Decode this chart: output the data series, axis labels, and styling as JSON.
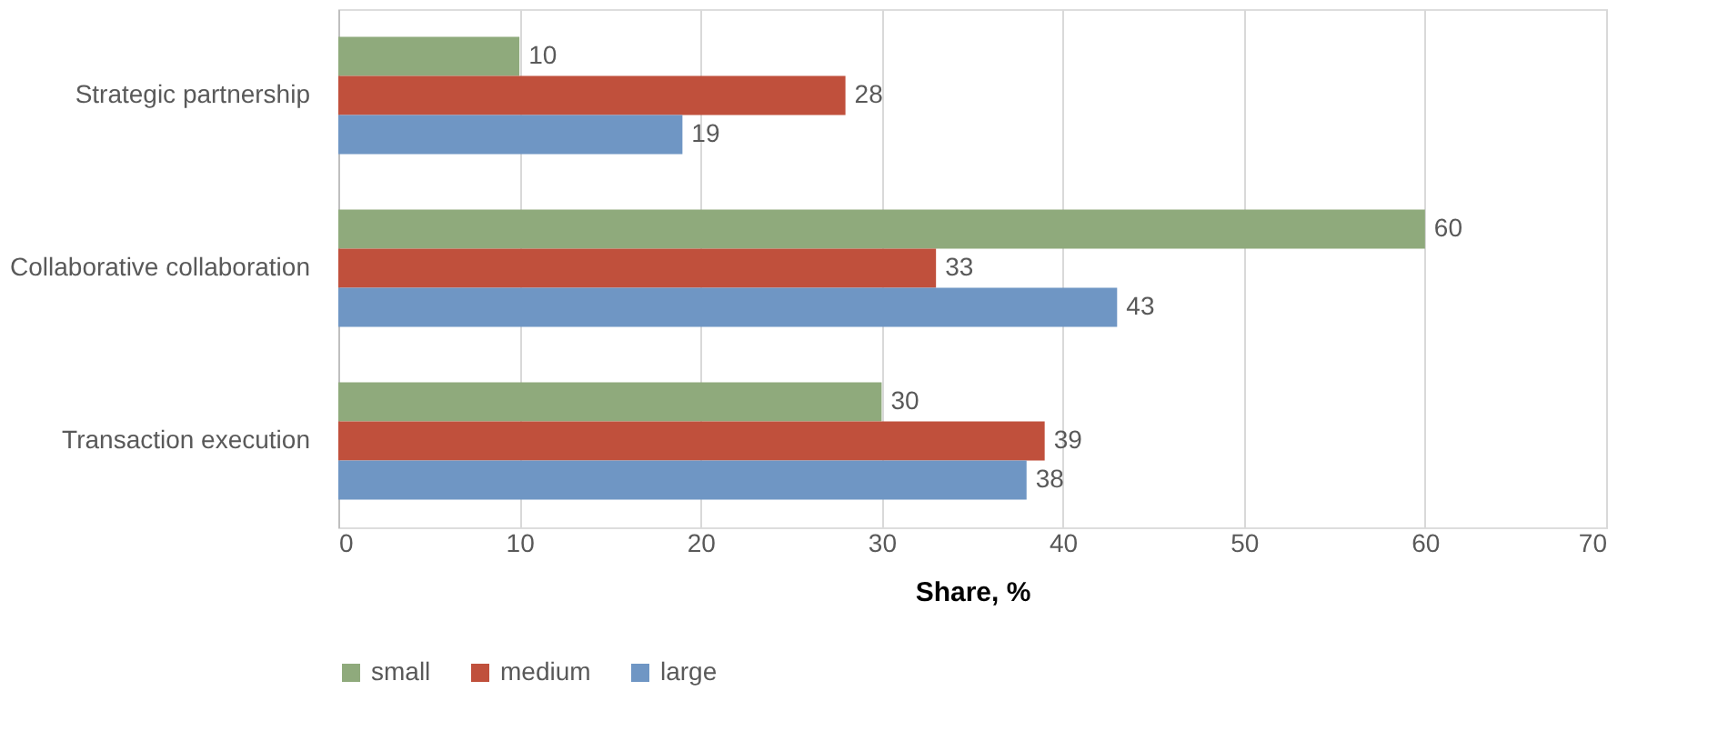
{
  "chart_data": {
    "type": "bar",
    "orientation": "horizontal",
    "xlabel": "Share, %",
    "categories": [
      "Strategic partnership",
      "Collaborative collaboration",
      "Transaction execution"
    ],
    "series": [
      {
        "name": "small",
        "color": "#8faa7c",
        "values": [
          10,
          60,
          30
        ]
      },
      {
        "name": "medium",
        "color": "#c0503c",
        "values": [
          28,
          33,
          39
        ]
      },
      {
        "name": "large",
        "color": "#6f96c4",
        "values": [
          19,
          43,
          38
        ]
      }
    ],
    "xlim": [
      0,
      70
    ],
    "xticks": [
      0,
      10,
      20,
      30,
      40,
      50,
      60,
      70
    ],
    "grid": "x",
    "legend": "bottom",
    "data_labels": true
  }
}
